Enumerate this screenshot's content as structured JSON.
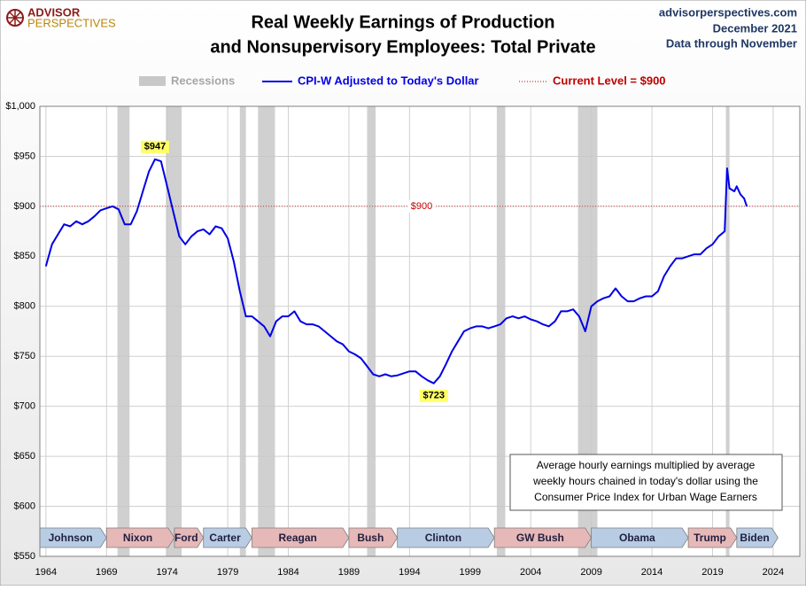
{
  "chart_data": {
    "type": "line",
    "brand": [
      "ADVISOR",
      "PERSPECTIVES"
    ],
    "title": [
      "Real Weekly Earnings of Production",
      "and Nonsupervisory Employees: Total Private"
    ],
    "source": [
      "advisorperspectives.com",
      "December 2021",
      "Data through November"
    ],
    "x": [
      1964,
      1964.5,
      1965,
      1965.5,
      1966,
      1966.5,
      1967,
      1967.5,
      1968,
      1968.5,
      1969,
      1969.5,
      1970,
      1970.5,
      1971,
      1971.5,
      1972,
      1972.5,
      1973,
      1973.5,
      1974,
      1974.5,
      1975,
      1975.5,
      1976,
      1976.5,
      1977,
      1977.5,
      1978,
      1978.5,
      1979,
      1979.5,
      1980,
      1980.5,
      1981,
      1981.5,
      1982,
      1982.5,
      1983,
      1983.5,
      1984,
      1984.5,
      1985,
      1985.5,
      1986,
      1986.5,
      1987,
      1987.5,
      1988,
      1988.5,
      1989,
      1989.5,
      1990,
      1990.5,
      1991,
      1991.5,
      1992,
      1992.5,
      1993,
      1993.5,
      1994,
      1994.5,
      1995,
      1995.5,
      1996,
      1996.5,
      1997,
      1997.5,
      1998,
      1998.5,
      1999,
      1999.5,
      2000,
      2000.5,
      2001,
      2001.5,
      2002,
      2002.5,
      2003,
      2003.5,
      2004,
      2004.5,
      2005,
      2005.5,
      2006,
      2006.5,
      2007,
      2007.5,
      2008,
      2008.5,
      2009,
      2009.5,
      2010,
      2010.5,
      2011,
      2011.5,
      2012,
      2012.5,
      2013,
      2013.5,
      2014,
      2014.5,
      2015,
      2015.5,
      2016,
      2016.5,
      2017,
      2017.5,
      2018,
      2018.5,
      2019,
      2019.5,
      2020,
      2020.2,
      2020.4,
      2020.8,
      2021,
      2021.3,
      2021.6,
      2021.83
    ],
    "series": [
      {
        "name": "CPI-W Adjusted to Today's Dollar",
        "color": "#0000e6",
        "values": [
          840,
          862,
          872,
          882,
          880,
          885,
          882,
          885,
          890,
          896,
          898,
          900,
          897,
          882,
          882,
          895,
          915,
          935,
          947,
          945,
          920,
          895,
          870,
          862,
          870,
          875,
          877,
          872,
          880,
          878,
          868,
          845,
          815,
          790,
          790,
          785,
          780,
          770,
          785,
          790,
          790,
          795,
          785,
          782,
          782,
          780,
          775,
          770,
          765,
          762,
          755,
          752,
          748,
          740,
          732,
          730,
          732,
          730,
          731,
          733,
          735,
          735,
          730,
          726,
          723,
          730,
          742,
          755,
          765,
          775,
          778,
          780,
          780,
          778,
          780,
          782,
          788,
          790,
          788,
          790,
          787,
          785,
          782,
          780,
          785,
          795,
          795,
          797,
          790,
          775,
          800,
          805,
          808,
          810,
          818,
          810,
          805,
          805,
          808,
          810,
          810,
          815,
          830,
          840,
          848,
          848,
          850,
          852,
          852,
          858,
          862,
          870,
          875,
          938,
          918,
          915,
          920,
          912,
          908,
          900
        ]
      }
    ],
    "xlim": [
      1963.5,
      2026.2
    ],
    "xticks": [
      1964,
      1969,
      1974,
      1979,
      1984,
      1989,
      1994,
      1999,
      2004,
      2009,
      2014,
      2019,
      2024
    ],
    "ylim": [
      550,
      1000
    ],
    "yticks": [
      {
        "value": 550,
        "label": "$550"
      },
      {
        "value": 600,
        "label": "$600"
      },
      {
        "value": 650,
        "label": "$650"
      },
      {
        "value": 700,
        "label": "$700"
      },
      {
        "value": 750,
        "label": "$750"
      },
      {
        "value": 800,
        "label": "$800"
      },
      {
        "value": 850,
        "label": "$850"
      },
      {
        "value": 900,
        "label": "$900"
      },
      {
        "value": 950,
        "label": "$950"
      },
      {
        "value": 1000,
        "label": "$1,000"
      }
    ],
    "grid": true,
    "recessions": {
      "name": "Recessions",
      "color": "#c8c8c8",
      "periods": [
        [
          1969.9,
          1970.9
        ],
        [
          1973.9,
          1975.2
        ],
        [
          1980.0,
          1980.5
        ],
        [
          1981.5,
          1982.9
        ],
        [
          1990.5,
          1991.2
        ],
        [
          2001.2,
          2001.9
        ],
        [
          2007.9,
          2009.5
        ],
        [
          2020.1,
          2020.4
        ]
      ]
    },
    "current_level": {
      "value": 900,
      "legend": "Current Level = $900",
      "label": "$900",
      "x": 1995,
      "color": "#c00000"
    },
    "annotations": [
      {
        "label": "$947",
        "value": 947,
        "x": 1973
      },
      {
        "label": "$723",
        "value": 723,
        "x": 1996
      }
    ],
    "presidents": [
      {
        "name": "Johnson",
        "start": 1963.5,
        "end": 1969,
        "color": "#b8cce4"
      },
      {
        "name": "Nixon",
        "start": 1969,
        "end": 1974.6,
        "color": "#e6b8b7"
      },
      {
        "name": "Ford",
        "start": 1974.6,
        "end": 1977,
        "color": "#e6b8b7"
      },
      {
        "name": "Carter",
        "start": 1977,
        "end": 1981,
        "color": "#b8cce4"
      },
      {
        "name": "Reagan",
        "start": 1981,
        "end": 1989,
        "color": "#e6b8b7"
      },
      {
        "name": "Bush",
        "start": 1989,
        "end": 1993,
        "color": "#e6b8b7"
      },
      {
        "name": "Clinton",
        "start": 1993,
        "end": 2001,
        "color": "#b8cce4"
      },
      {
        "name": "GW Bush",
        "start": 2001,
        "end": 2009,
        "color": "#e6b8b7"
      },
      {
        "name": "Obama",
        "start": 2009,
        "end": 2017,
        "color": "#b8cce4"
      },
      {
        "name": "Trump",
        "start": 2017,
        "end": 2021,
        "color": "#e6b8b7"
      },
      {
        "name": "Biden",
        "start": 2021,
        "end": 2024.4,
        "color": "#b8cce4"
      }
    ],
    "note": [
      "Average hourly earnings multiplied by average",
      "weekly hours chained in today's dollar using the",
      "Consumer Price Index for Urban Wage Earners"
    ]
  }
}
